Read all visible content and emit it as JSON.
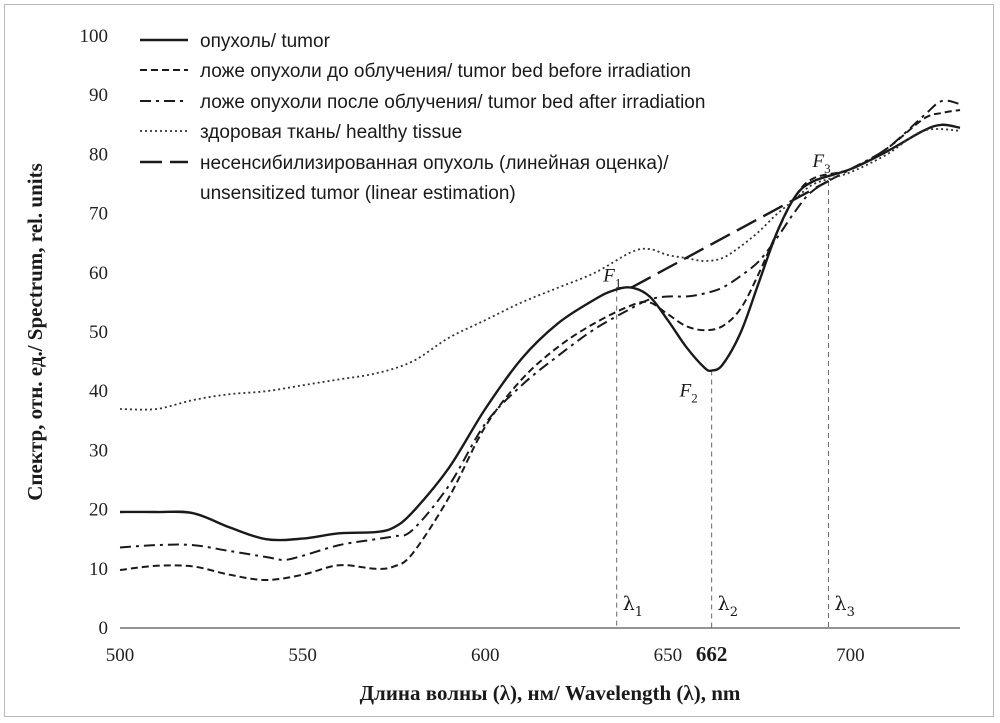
{
  "chart_data": {
    "type": "line",
    "xlabel": "Длина волны (λ), нм/ Wavelength (λ), nm",
    "ylabel": "Спектр,  отн. ед./ Spectrum,  rel. units",
    "xlim": [
      500,
      730
    ],
    "ylim": [
      0,
      100
    ],
    "x_ticks": [
      "500",
      "550",
      "600",
      "650",
      "700"
    ],
    "x_special_tick": "662",
    "y_ticks": [
      "0",
      "10",
      "20",
      "30",
      "40",
      "50",
      "60",
      "70",
      "80",
      "90",
      "100"
    ],
    "grid": false,
    "legend_position": "top-left",
    "series": [
      {
        "name": "опухоль/ tumor",
        "style": "solid",
        "points": [
          [
            500,
            19.6
          ],
          [
            510,
            19.6
          ],
          [
            520,
            19.4
          ],
          [
            530,
            17
          ],
          [
            540,
            15
          ],
          [
            550,
            15.1
          ],
          [
            560,
            16
          ],
          [
            570,
            16.2
          ],
          [
            575,
            17
          ],
          [
            580,
            19.5
          ],
          [
            590,
            27
          ],
          [
            600,
            37
          ],
          [
            610,
            45.5
          ],
          [
            620,
            51.5
          ],
          [
            630,
            55.5
          ],
          [
            635,
            57
          ],
          [
            640,
            57.5
          ],
          [
            645,
            56
          ],
          [
            650,
            52
          ],
          [
            655,
            47.5
          ],
          [
            660,
            44
          ],
          [
            662,
            43.5
          ],
          [
            665,
            44.5
          ],
          [
            670,
            50
          ],
          [
            675,
            58.5
          ],
          [
            680,
            67
          ],
          [
            685,
            73
          ],
          [
            690,
            75.5
          ],
          [
            700,
            77.5
          ],
          [
            710,
            80.5
          ],
          [
            720,
            84
          ],
          [
            725,
            85
          ],
          [
            730,
            84.5
          ]
        ]
      },
      {
        "name": "ложе опухоли до облучения/ tumor bed before irradiation",
        "style": "dashed",
        "points": [
          [
            500,
            9.8
          ],
          [
            510,
            10.5
          ],
          [
            520,
            10.4
          ],
          [
            530,
            9
          ],
          [
            540,
            8.1
          ],
          [
            550,
            9
          ],
          [
            560,
            10.6
          ],
          [
            570,
            10
          ],
          [
            575,
            10.4
          ],
          [
            580,
            12.5
          ],
          [
            590,
            22
          ],
          [
            600,
            34
          ],
          [
            610,
            42
          ],
          [
            620,
            47.5
          ],
          [
            630,
            51.5
          ],
          [
            640,
            54.5
          ],
          [
            645,
            55
          ],
          [
            650,
            53
          ],
          [
            655,
            51
          ],
          [
            660,
            50.3
          ],
          [
            665,
            51
          ],
          [
            670,
            54
          ],
          [
            675,
            60
          ],
          [
            680,
            67
          ],
          [
            685,
            73
          ],
          [
            690,
            76
          ],
          [
            700,
            77.5
          ],
          [
            710,
            81
          ],
          [
            720,
            86
          ],
          [
            725,
            87
          ],
          [
            730,
            87.5
          ]
        ]
      },
      {
        "name": "ложе опухоли после облучения/ tumor bed after irradiation",
        "style": "dashdot",
        "points": [
          [
            500,
            13.6
          ],
          [
            510,
            14
          ],
          [
            520,
            14
          ],
          [
            530,
            13
          ],
          [
            540,
            12
          ],
          [
            545,
            11.5
          ],
          [
            550,
            12.2
          ],
          [
            560,
            14
          ],
          [
            570,
            15
          ],
          [
            575,
            15.5
          ],
          [
            580,
            16.5
          ],
          [
            590,
            24
          ],
          [
            600,
            34.5
          ],
          [
            610,
            41
          ],
          [
            620,
            46
          ],
          [
            630,
            50.5
          ],
          [
            640,
            54
          ],
          [
            645,
            55.5
          ],
          [
            650,
            56
          ],
          [
            655,
            56
          ],
          [
            660,
            56.5
          ],
          [
            665,
            57.5
          ],
          [
            670,
            59.5
          ],
          [
            675,
            62
          ],
          [
            680,
            66
          ],
          [
            685,
            70.5
          ],
          [
            690,
            74
          ],
          [
            700,
            77.5
          ],
          [
            710,
            81
          ],
          [
            720,
            86.5
          ],
          [
            725,
            89
          ],
          [
            730,
            88.5
          ]
        ]
      },
      {
        "name": "здоровая ткань/ healthy tissue",
        "style": "dotted",
        "points": [
          [
            500,
            37
          ],
          [
            510,
            37
          ],
          [
            520,
            38.5
          ],
          [
            530,
            39.5
          ],
          [
            540,
            40
          ],
          [
            550,
            41
          ],
          [
            560,
            42
          ],
          [
            570,
            43
          ],
          [
            580,
            45
          ],
          [
            590,
            49
          ],
          [
            600,
            52
          ],
          [
            610,
            55
          ],
          [
            620,
            57.5
          ],
          [
            630,
            60
          ],
          [
            640,
            63.5
          ],
          [
            645,
            64
          ],
          [
            650,
            63
          ],
          [
            655,
            62.5
          ],
          [
            660,
            62
          ],
          [
            665,
            62.5
          ],
          [
            670,
            64.5
          ],
          [
            675,
            67
          ],
          [
            680,
            70
          ],
          [
            685,
            72.5
          ],
          [
            690,
            75
          ],
          [
            700,
            77
          ],
          [
            710,
            80
          ],
          [
            720,
            84
          ],
          [
            730,
            84
          ]
        ]
      },
      {
        "name": "несенсибилизированная опухоль (линейная оценка)/ unsensitized tumor (linear estimation)",
        "style": "longdash",
        "points": [
          [
            640,
            57.5
          ],
          [
            694,
            75.5
          ]
        ]
      }
    ],
    "annotations": [
      {
        "label": "F",
        "sub": "1",
        "x": 640,
        "y": 57.5
      },
      {
        "label": "F",
        "sub": "2",
        "x": 662,
        "y": 43.5
      },
      {
        "label": "F",
        "sub": "3",
        "x": 694,
        "y": 75.5
      }
    ],
    "markers": [
      {
        "label": "λ",
        "sub": "1",
        "x": 636
      },
      {
        "label": "λ",
        "sub": "2",
        "x": 662
      },
      {
        "label": "λ",
        "sub": "3",
        "x": 694
      }
    ]
  }
}
